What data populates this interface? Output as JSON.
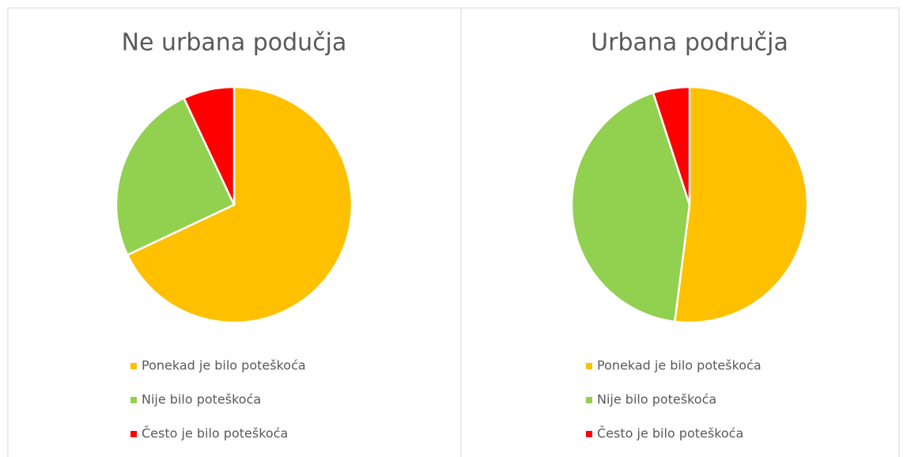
{
  "chart_data": [
    {
      "type": "pie",
      "title": "Ne urbana podučja",
      "categories": [
        "Ponekad je bilo poteškoća",
        "Nije bilo poteškoća",
        "Često je bilo poteškoća"
      ],
      "values": [
        68,
        25,
        7
      ],
      "colors": [
        "#ffc000",
        "#92d050",
        "#ff0000"
      ]
    },
    {
      "type": "pie",
      "title": "Urbana područja",
      "categories": [
        "Ponekad je bilo poteškoća",
        "Nije bilo poteškoća",
        "Često je bilo poteškoća"
      ],
      "values": [
        52,
        43,
        5
      ],
      "colors": [
        "#ffc000",
        "#92d050",
        "#ff0000"
      ]
    }
  ]
}
